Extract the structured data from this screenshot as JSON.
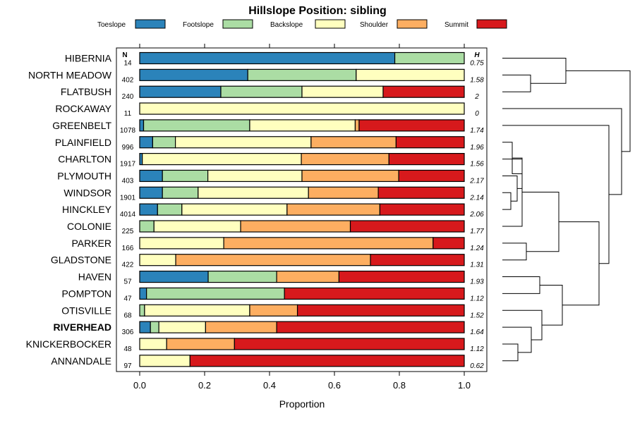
{
  "chart_data": {
    "type": "stacked-bar-horizontal",
    "title": "Hillslope Position: sibling",
    "xlabel": "Proportion",
    "xlim": [
      0,
      1
    ],
    "x_ticks": [
      "0.0",
      "0.2",
      "0.4",
      "0.6",
      "0.8",
      "1.0"
    ],
    "n_header": "N",
    "h_header": "H",
    "legend": [
      {
        "name": "Toeslope",
        "color": "#2b83ba"
      },
      {
        "name": "Footslope",
        "color": "#abdda4"
      },
      {
        "name": "Backslope",
        "color": "#ffffbf"
      },
      {
        "name": "Shoulder",
        "color": "#fdae61"
      },
      {
        "name": "Summit",
        "color": "#d7191c"
      }
    ],
    "rows": [
      {
        "name": "HIBERNIA",
        "n": "14",
        "h": "0.75",
        "bold": false,
        "values": [
          0.786,
          0.214,
          0,
          0,
          0
        ]
      },
      {
        "name": "NORTH MEADOW",
        "n": "402",
        "h": "1.58",
        "bold": false,
        "values": [
          0.333,
          0.334,
          0.333,
          0,
          0
        ]
      },
      {
        "name": "FLATBUSH",
        "n": "240",
        "h": "2",
        "bold": false,
        "values": [
          0.25,
          0.25,
          0.25,
          0,
          0.25
        ]
      },
      {
        "name": "ROCKAWAY",
        "n": "11",
        "h": "0",
        "bold": false,
        "values": [
          0,
          0,
          1,
          0,
          0
        ]
      },
      {
        "name": "GREENBELT",
        "n": "1078",
        "h": "1.74",
        "bold": false,
        "values": [
          0.012,
          0.327,
          0.325,
          0.012,
          0.324
        ]
      },
      {
        "name": "PLAINFIELD",
        "n": "996",
        "h": "1.96",
        "bold": false,
        "values": [
          0.04,
          0.07,
          0.418,
          0.262,
          0.21
        ]
      },
      {
        "name": "CHARLTON",
        "n": "1917",
        "h": "1.56",
        "bold": false,
        "values": [
          0.008,
          0,
          0.49,
          0.27,
          0.232
        ]
      },
      {
        "name": "PLYMOUTH",
        "n": "403",
        "h": "2.17",
        "bold": false,
        "values": [
          0.07,
          0.14,
          0.29,
          0.298,
          0.202
        ]
      },
      {
        "name": "WINDSOR",
        "n": "1901",
        "h": "2.14",
        "bold": false,
        "values": [
          0.07,
          0.11,
          0.34,
          0.215,
          0.265
        ]
      },
      {
        "name": "HINCKLEY",
        "n": "4014",
        "h": "2.06",
        "bold": false,
        "values": [
          0.055,
          0.075,
          0.324,
          0.286,
          0.26
        ]
      },
      {
        "name": "COLONIE",
        "n": "225",
        "h": "1.77",
        "bold": false,
        "values": [
          0,
          0.044,
          0.267,
          0.338,
          0.351
        ]
      },
      {
        "name": "PARKER",
        "n": "166",
        "h": "1.24",
        "bold": false,
        "values": [
          0,
          0,
          0.259,
          0.645,
          0.096
        ]
      },
      {
        "name": "GLADSTONE",
        "n": "422",
        "h": "1.31",
        "bold": false,
        "values": [
          0,
          0,
          0.111,
          0.6,
          0.289
        ]
      },
      {
        "name": "HAVEN",
        "n": "57",
        "h": "1.93",
        "bold": false,
        "values": [
          0.211,
          0.211,
          0,
          0.192,
          0.386
        ]
      },
      {
        "name": "POMPTON",
        "n": "47",
        "h": "1.12",
        "bold": false,
        "values": [
          0.021,
          0.425,
          0,
          0,
          0.554
        ]
      },
      {
        "name": "OTISVILLE",
        "n": "68",
        "h": "1.52",
        "bold": false,
        "values": [
          0,
          0.015,
          0.324,
          0.147,
          0.514
        ]
      },
      {
        "name": "RIVERHEAD",
        "n": "306",
        "h": "1.64",
        "bold": true,
        "values": [
          0.033,
          0.026,
          0.144,
          0.219,
          0.578
        ]
      },
      {
        "name": "KNICKERBOCKER",
        "n": "48",
        "h": "1.12",
        "bold": false,
        "values": [
          0,
          0,
          0.083,
          0.209,
          0.708
        ]
      },
      {
        "name": "ANNANDALE",
        "n": "97",
        "h": "0.62",
        "bold": false,
        "values": [
          0,
          0,
          0.155,
          0,
          0.845
        ]
      }
    ]
  }
}
